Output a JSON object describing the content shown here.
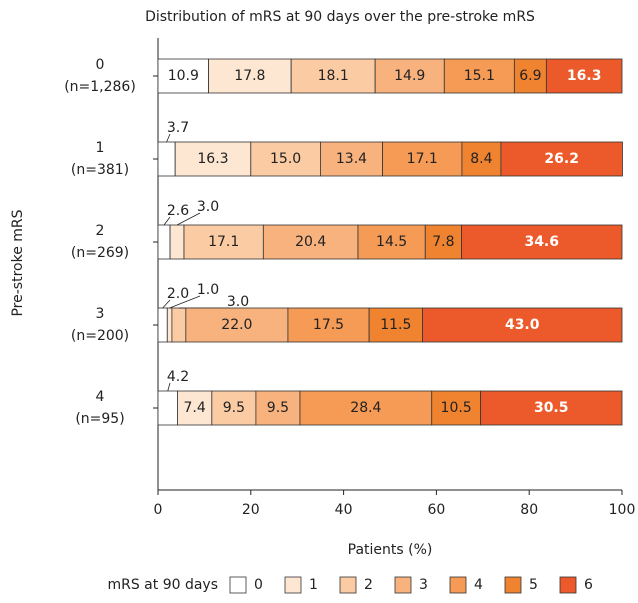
{
  "chart_data": {
    "type": "stacked-bar-horizontal",
    "title": "Distribution of mRS at 90 days over the pre-stroke mRS",
    "y_label": "Pre-stroke mRS",
    "x_label": "Patients (%)",
    "legend_title": "mRS at 90 days",
    "categories": [
      "0",
      "1",
      "2",
      "3",
      "4"
    ],
    "category_counts": [
      "(n=1,286)",
      "(n=381)",
      "(n=269)",
      "(n=200)",
      "(n=95)"
    ],
    "xlim": [
      0,
      100
    ],
    "xticks": [
      0,
      20,
      40,
      60,
      80,
      100
    ],
    "series": [
      {
        "name": "0",
        "color": "#ffffff",
        "values": [
          10.9,
          3.7,
          2.6,
          2.0,
          4.2
        ],
        "value_labels": [
          "10.9",
          "3.7",
          "2.6",
          "2.0",
          "4.2"
        ]
      },
      {
        "name": "1",
        "color": "#fde6d2",
        "values": [
          17.8,
          16.3,
          3.0,
          1.0,
          7.4
        ],
        "value_labels": [
          "17.8",
          "16.3",
          "3.0",
          "1.0",
          "7.4"
        ]
      },
      {
        "name": "2",
        "color": "#fbcba3",
        "values": [
          18.1,
          15.0,
          17.1,
          3.0,
          9.5
        ],
        "value_labels": [
          "18.1",
          "15.0",
          "17.1",
          "3.0",
          "9.5"
        ]
      },
      {
        "name": "3",
        "color": "#f8b27e",
        "values": [
          14.9,
          13.4,
          20.4,
          22.0,
          9.5
        ],
        "value_labels": [
          "14.9",
          "13.4",
          "20.4",
          "22.0",
          "9.5"
        ]
      },
      {
        "name": "4",
        "color": "#f59b55",
        "values": [
          15.1,
          17.1,
          14.5,
          17.5,
          28.4
        ],
        "value_labels": [
          "15.1",
          "17.1",
          "14.5",
          "17.5",
          "28.4"
        ]
      },
      {
        "name": "5",
        "color": "#f08330",
        "values": [
          6.9,
          8.4,
          7.8,
          11.5,
          10.5
        ],
        "value_labels": [
          "6.9",
          "8.4",
          "7.8",
          "11.5",
          "10.5"
        ]
      },
      {
        "name": "6",
        "color": "#ec5a2b",
        "values": [
          16.3,
          26.2,
          34.6,
          43.0,
          30.5
        ],
        "value_labels": [
          "16.3",
          "26.2",
          "34.6",
          "43.0",
          "30.5"
        ]
      }
    ]
  }
}
